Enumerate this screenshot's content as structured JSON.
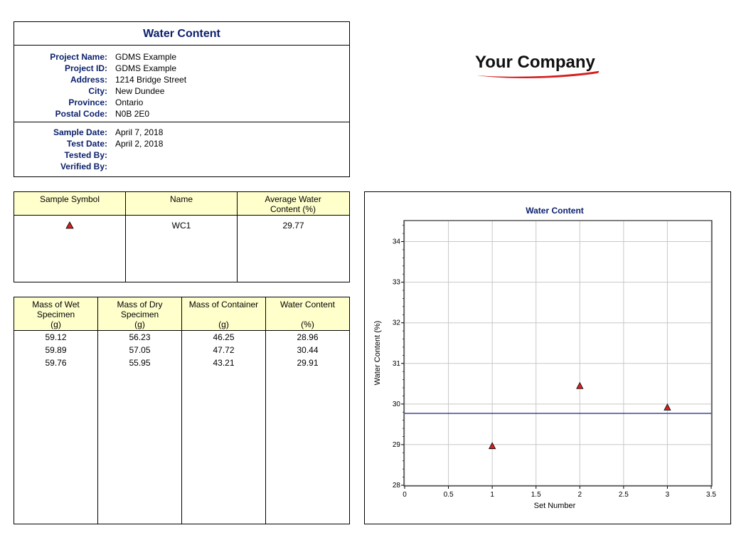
{
  "info": {
    "title": "Water Content",
    "project": [
      {
        "label": "Project Name:",
        "value": "GDMS Example"
      },
      {
        "label": "Project ID:",
        "value": "GDMS Example"
      },
      {
        "label": "Address:",
        "value": "1214 Bridge Street"
      },
      {
        "label": "City:",
        "value": "New Dundee"
      },
      {
        "label": "Province:",
        "value": "Ontario"
      },
      {
        "label": "Postal Code:",
        "value": "N0B 2E0"
      }
    ],
    "sample": [
      {
        "label": "Sample Date:",
        "value": "April 7, 2018"
      },
      {
        "label": "Test Date:",
        "value": "April 2, 2018"
      },
      {
        "label": "Tested By:",
        "value": ""
      },
      {
        "label": "Verified By:",
        "value": ""
      }
    ]
  },
  "logo": {
    "text": "Your Company",
    "swoosh_color": "#d42020"
  },
  "legend_table": {
    "headers": [
      "Sample Symbol",
      "Name",
      "Average Water Content (%)"
    ],
    "rows": [
      {
        "symbol": "triangle-icon",
        "name": "WC1",
        "average": "29.77"
      }
    ]
  },
  "data_table": {
    "headers": [
      {
        "line1": "Mass of Wet",
        "line2": "Specimen",
        "unit": "(g)"
      },
      {
        "line1": "Mass of Dry",
        "line2": "Specimen",
        "unit": "(g)"
      },
      {
        "line1": "Mass of Container",
        "line2": "",
        "unit": "(g)"
      },
      {
        "line1": "Water Content",
        "line2": "",
        "unit": "(%)"
      }
    ],
    "rows": [
      [
        "59.12",
        "56.23",
        "46.25",
        "28.96"
      ],
      [
        "59.89",
        "57.05",
        "47.72",
        "30.44"
      ],
      [
        "59.76",
        "55.95",
        "43.21",
        "29.91"
      ]
    ]
  },
  "colors": {
    "header_fill": "#ffffcc",
    "title_blue": "#0a1f6b",
    "marker_fill": "#d42020",
    "average_line": "#1a237e",
    "grid": "#c8c8c8"
  },
  "chart_data": {
    "type": "scatter",
    "title": "Water Content",
    "xlabel": "Set Number",
    "ylabel": "Water Content (%)",
    "xlim": [
      0,
      3.5
    ],
    "ylim": [
      28,
      34.5
    ],
    "xticks": [
      0,
      0.5,
      1,
      1.5,
      2,
      2.5,
      3,
      3.5
    ],
    "xtick_labels": [
      "0",
      "0.5",
      "1",
      "1.5",
      "2",
      "2.5",
      "3",
      "3.5"
    ],
    "yticks": [
      28,
      29,
      30,
      31,
      32,
      33,
      34
    ],
    "ytick_labels": [
      "28",
      "29",
      "30",
      "31",
      "32",
      "33",
      "34"
    ],
    "grid": true,
    "series": [
      {
        "name": "WC1",
        "marker": "triangle",
        "x": [
          1,
          2,
          3
        ],
        "y": [
          28.96,
          30.44,
          29.91
        ]
      }
    ],
    "average_line": {
      "y": 29.77
    }
  }
}
